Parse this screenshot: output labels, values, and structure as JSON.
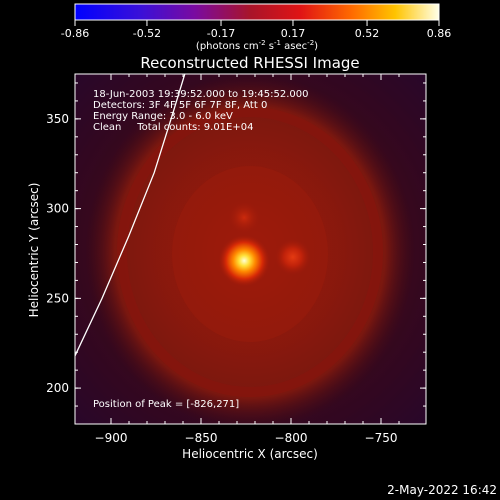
{
  "title": "Reconstructed RHESSI Image",
  "colorbar": {
    "ticks": [
      "-0.86",
      "-0.52",
      "-0.17",
      "0.17",
      "0.52",
      "0.86"
    ],
    "values": [
      -0.86,
      -0.52,
      -0.17,
      0.17,
      0.52,
      0.86
    ],
    "range": [
      -0.86,
      0.86
    ],
    "units_prefix": "(photons cm",
    "units_exp1": "-2",
    "units_mid": " s",
    "units_exp2": "-1",
    "units_mid2": " asec",
    "units_exp3": "-2",
    "units_suffix": ")"
  },
  "annotations": {
    "line1": "18-Jun-2003 19:39:52.000 to 19:45:52.000",
    "line2": "Detectors: 3F 4F 5F 6F 7F 8F, Att 0",
    "line3": "Energy Range: 3.0 - 6.0 keV",
    "line4": "Clean     Total counts: 9.01E+04",
    "peak": "Position of Peak = [-826,271]"
  },
  "footer": {
    "timestamp": "2-May-2022 16:42"
  },
  "chart_data": {
    "type": "heatmap",
    "title": "Reconstructed RHESSI Image",
    "xlabel": "Heliocentric X (arcsec)",
    "ylabel": "Heliocentric Y (arcsec)",
    "xlim": [
      -920,
      -725
    ],
    "ylim": [
      180,
      375
    ],
    "xticks": [
      -900,
      -850,
      -800,
      -750
    ],
    "yticks": [
      200,
      250,
      300,
      350
    ],
    "xtick_labels": [
      "−900",
      "−850",
      "−800",
      "−750"
    ],
    "ytick_labels": [
      "200",
      "250",
      "300",
      "350"
    ],
    "peak": [
      -826,
      271
    ],
    "secondary_source": [
      -799,
      273
    ],
    "minor_source": [
      -826,
      295
    ],
    "limb_curve": [
      [
        -920,
        218
      ],
      [
        -905,
        250
      ],
      [
        -890,
        285
      ],
      [
        -876,
        320
      ],
      [
        -866,
        352
      ],
      [
        -859,
        375
      ]
    ],
    "colormap": "hot"
  }
}
